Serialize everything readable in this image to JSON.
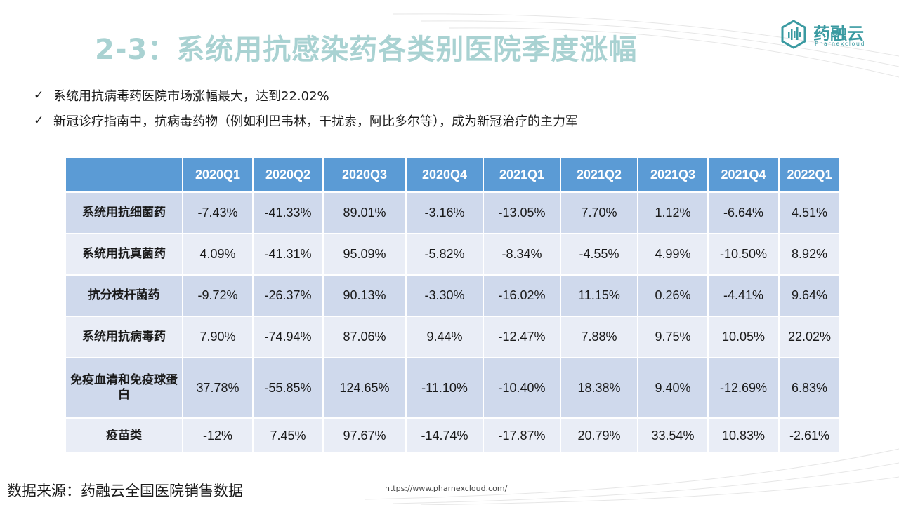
{
  "title": "2-3：系统用抗感染药各类别医院季度涨幅",
  "logo": {
    "name": "药融云",
    "sub": "Pharnexcloud",
    "icon": "pharnexcloud-hexagon-icon"
  },
  "bullets": [
    "系统用抗病毒药医院市场涨幅最大，达到22.02%",
    "新冠诊疗指南中，抗病毒药物（例如利巴韦林，干扰素，阿比多尔等），成为新冠治疗的主力军"
  ],
  "check_glyph": "✓",
  "table": {
    "corner": "",
    "columns": [
      "2020Q1",
      "2020Q2",
      "2020Q3",
      "2020Q4",
      "2021Q1",
      "2021Q2",
      "2021Q3",
      "2021Q4",
      "2022Q1"
    ],
    "rows": [
      {
        "label": "系统用抗细菌药",
        "values": [
          "-7.43%",
          "-41.33%",
          "89.01%",
          "-3.16%",
          "-13.05%",
          "7.70%",
          "1.12%",
          "-6.64%",
          "4.51%"
        ]
      },
      {
        "label": "系统用抗真菌药",
        "values": [
          "4.09%",
          "-41.31%",
          "95.09%",
          "-5.82%",
          "-8.34%",
          "-4.55%",
          "4.99%",
          "-10.50%",
          "8.92%"
        ]
      },
      {
        "label": "抗分枝杆菌药",
        "values": [
          "-9.72%",
          "-26.37%",
          "90.13%",
          "-3.30%",
          "-16.02%",
          "11.15%",
          "0.26%",
          "-4.41%",
          "9.64%"
        ]
      },
      {
        "label": "系统用抗病毒药",
        "values": [
          "7.90%",
          "-74.94%",
          "87.06%",
          "9.44%",
          "-12.47%",
          "7.88%",
          "9.75%",
          "10.05%",
          "22.02%"
        ]
      },
      {
        "label": "免疫血清和免疫球蛋白",
        "values": [
          "37.78%",
          "-55.85%",
          "124.65%",
          "-11.10%",
          "-10.40%",
          "18.38%",
          "9.40%",
          "-12.69%",
          "6.83%"
        ]
      },
      {
        "label": "疫苗类",
        "values": [
          "-12%",
          "7.45%",
          "97.67%",
          "-14.74%",
          "-17.87%",
          "20.79%",
          "33.54%",
          "10.83%",
          "-2.61%"
        ]
      }
    ]
  },
  "source": "数据来源：药融云全国医院销售数据",
  "url": "https://www.pharnexcloud.com/",
  "colors": {
    "title": "#a9d2d2",
    "header_bg": "#5b9bd5",
    "row_dark": "#cfd9ec",
    "row_light": "#e9edf6",
    "brand": "#3a9aa1"
  }
}
